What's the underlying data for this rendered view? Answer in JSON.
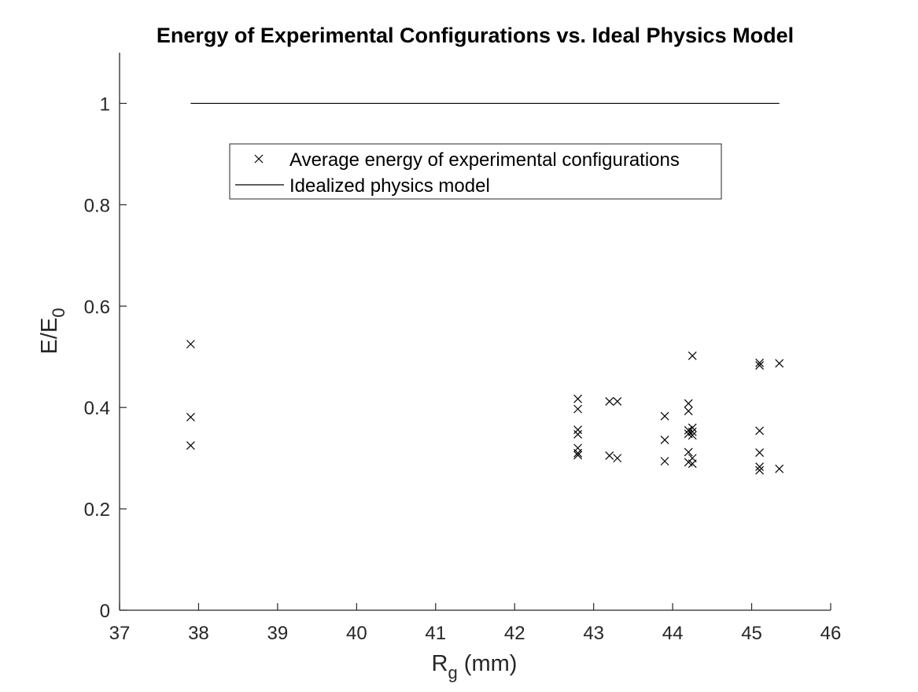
{
  "chart_data": {
    "type": "scatter",
    "title": "Energy of Experimental Configurations vs. Ideal Physics Model",
    "xlabel": {
      "main": "R",
      "sub": "g",
      "suffix": " (mm)"
    },
    "ylabel": {
      "main": "E/E",
      "sub": "0"
    },
    "xlim": [
      37,
      46
    ],
    "ylim": [
      0,
      1.1
    ],
    "xticks": [
      "37",
      "38",
      "39",
      "40",
      "41",
      "42",
      "43",
      "44",
      "45",
      "46"
    ],
    "yticks": [
      "0",
      "0.2",
      "0.4",
      "0.6",
      "0.8",
      "1"
    ],
    "legend_position": "top-center",
    "series": [
      {
        "name": "Average energy of experimental configurations",
        "marker": "x",
        "color": "#000000",
        "points": [
          [
            37.9,
            0.525
          ],
          [
            37.9,
            0.381
          ],
          [
            37.9,
            0.325
          ],
          [
            42.8,
            0.417
          ],
          [
            42.8,
            0.397
          ],
          [
            42.8,
            0.356
          ],
          [
            42.8,
            0.347
          ],
          [
            42.8,
            0.32
          ],
          [
            42.8,
            0.31
          ],
          [
            42.8,
            0.306
          ],
          [
            43.2,
            0.412
          ],
          [
            43.3,
            0.412
          ],
          [
            43.2,
            0.305
          ],
          [
            43.3,
            0.3
          ],
          [
            43.9,
            0.383
          ],
          [
            43.9,
            0.336
          ],
          [
            43.9,
            0.294
          ],
          [
            44.2,
            0.408
          ],
          [
            44.2,
            0.393
          ],
          [
            44.25,
            0.36
          ],
          [
            44.2,
            0.355
          ],
          [
            44.25,
            0.352
          ],
          [
            44.2,
            0.348
          ],
          [
            44.25,
            0.345
          ],
          [
            44.2,
            0.312
          ],
          [
            44.25,
            0.3
          ],
          [
            44.2,
            0.292
          ],
          [
            44.25,
            0.289
          ],
          [
            44.25,
            0.502
          ],
          [
            45.1,
            0.488
          ],
          [
            45.1,
            0.483
          ],
          [
            45.1,
            0.354
          ],
          [
            45.1,
            0.311
          ],
          [
            45.1,
            0.283
          ],
          [
            45.1,
            0.276
          ],
          [
            45.35,
            0.487
          ],
          [
            45.35,
            0.279
          ]
        ]
      },
      {
        "name": "Idealized physics model",
        "marker": "line",
        "color": "#000000",
        "points": [
          [
            37.9,
            1.0
          ],
          [
            45.35,
            1.0
          ]
        ]
      }
    ]
  }
}
